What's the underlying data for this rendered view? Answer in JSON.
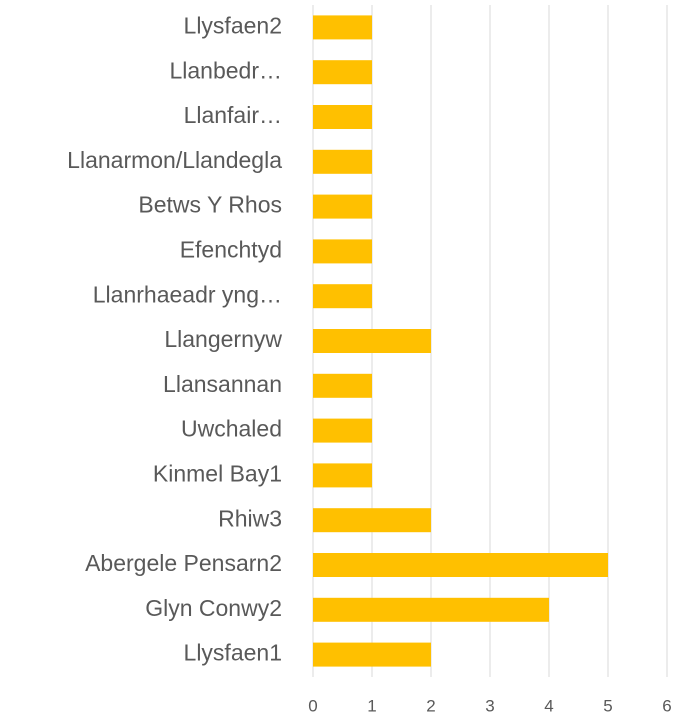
{
  "chart_data": {
    "type": "bar",
    "orientation": "horizontal",
    "categories": [
      "Llysfaen2",
      "Llanbedr…",
      "Llanfair…",
      "Llanarmon/Llandegla",
      "Betws Y Rhos",
      "Efenchtyd",
      "Llanrhaeadr yng…",
      "Llangernyw",
      "Llansannan",
      "Uwchaled",
      "Kinmel Bay1",
      "Rhiw3",
      "Abergele Pensarn2",
      "Glyn Conwy2",
      "Llysfaen1"
    ],
    "values": [
      1,
      1,
      1,
      1,
      1,
      1,
      1,
      2,
      1,
      1,
      1,
      2,
      5,
      4,
      2
    ],
    "color": "#ffc000",
    "xlim": [
      0,
      6
    ],
    "xticks": [
      0,
      1,
      2,
      3,
      4,
      5,
      6
    ],
    "grid": true
  }
}
